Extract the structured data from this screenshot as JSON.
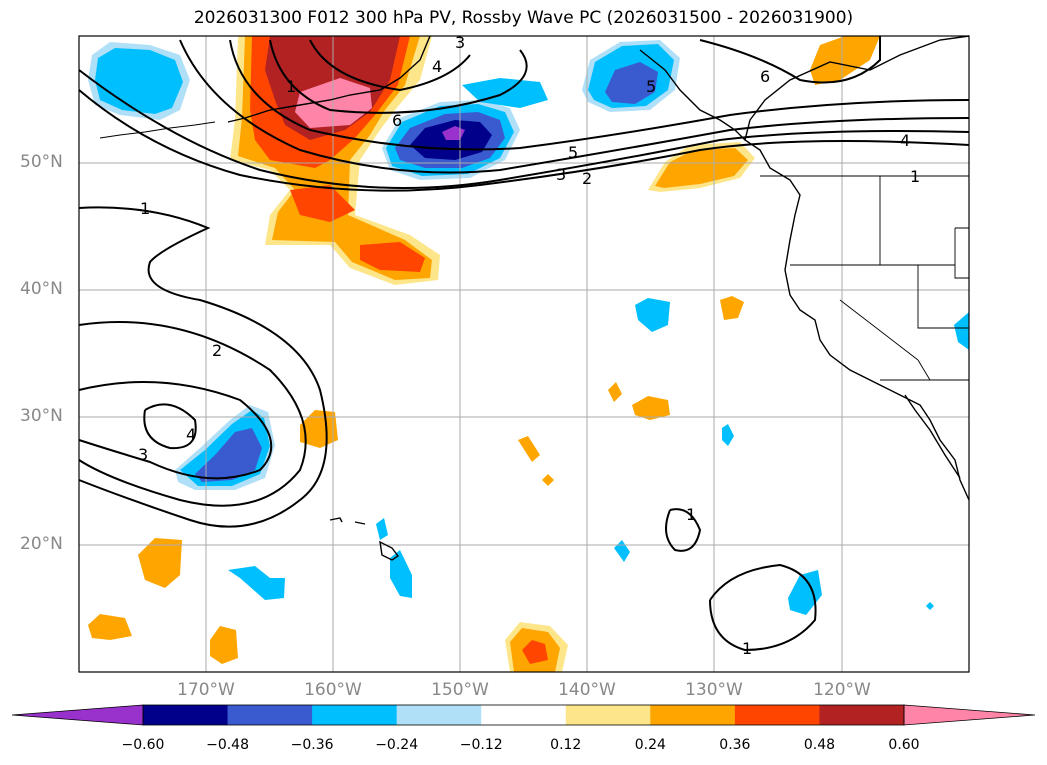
{
  "title": "2026031300 F012 300 hPa PV, Rossby Wave PC (2026031500 - 2026031900)",
  "map": {
    "projection": "PlateCarree",
    "lon_range": [
      -180,
      -110
    ],
    "lat_range": [
      10,
      60
    ],
    "lat_labels": [
      "50°N",
      "40°N",
      "30°N",
      "20°N"
    ],
    "lon_labels": [
      "170°W",
      "160°W",
      "150°W",
      "140°W",
      "130°W",
      "120°W"
    ]
  },
  "colorbar": {
    "levels": [
      "−0.60",
      "−0.48",
      "−0.36",
      "−0.24",
      "−0.12",
      "0.12",
      "0.24",
      "0.36",
      "0.48",
      "0.60"
    ],
    "colors": [
      "#9932cc",
      "#00008b",
      "#3a5bd0",
      "#00bfff",
      "#b0e0f8",
      "#ffffff",
      "#fde68a",
      "#ffa500",
      "#ff4500",
      "#b22222",
      "#ff85a8"
    ]
  },
  "contour_labels": [
    "1",
    "2",
    "3",
    "4",
    "3",
    "2",
    "1",
    "5",
    "6",
    "3",
    "4",
    "5",
    "6",
    "4",
    "1",
    "1",
    "1"
  ],
  "chart_data": {
    "type": "map-contour",
    "title": "2026031300 F012 300 hPa PV, Rossby Wave PC (2026031500 - 2026031900)",
    "shaded_field": "Rossby Wave PC",
    "contour_field": "300 hPa PV",
    "contour_levels": [
      1,
      2,
      3,
      4,
      5,
      6
    ],
    "shading_levels": [
      -0.6,
      -0.48,
      -0.36,
      -0.24,
      -0.12,
      0.12,
      0.24,
      0.36,
      0.48,
      0.6
    ],
    "xlim": [
      -180,
      -110
    ],
    "ylim": [
      10,
      60
    ],
    "notable_features": [
      {
        "name": "positive anomaly",
        "lon": -162,
        "lat": 55,
        "peak": 0.6
      },
      {
        "name": "negative anomaly",
        "lon": -150,
        "lat": 52,
        "peak": -0.6
      },
      {
        "name": "negative anomaly",
        "lon": -167,
        "lat": 27,
        "peak": -0.36
      },
      {
        "name": "negative anomaly",
        "lon": -176,
        "lat": 57,
        "peak": -0.24
      },
      {
        "name": "positive anomaly",
        "lon": -158,
        "lat": 43,
        "peak": 0.36
      },
      {
        "name": "positive anomaly",
        "lon": -131,
        "lat": 49,
        "peak": 0.24
      },
      {
        "name": "PV high",
        "lon": -174,
        "lat": 29,
        "value": 4
      }
    ]
  }
}
